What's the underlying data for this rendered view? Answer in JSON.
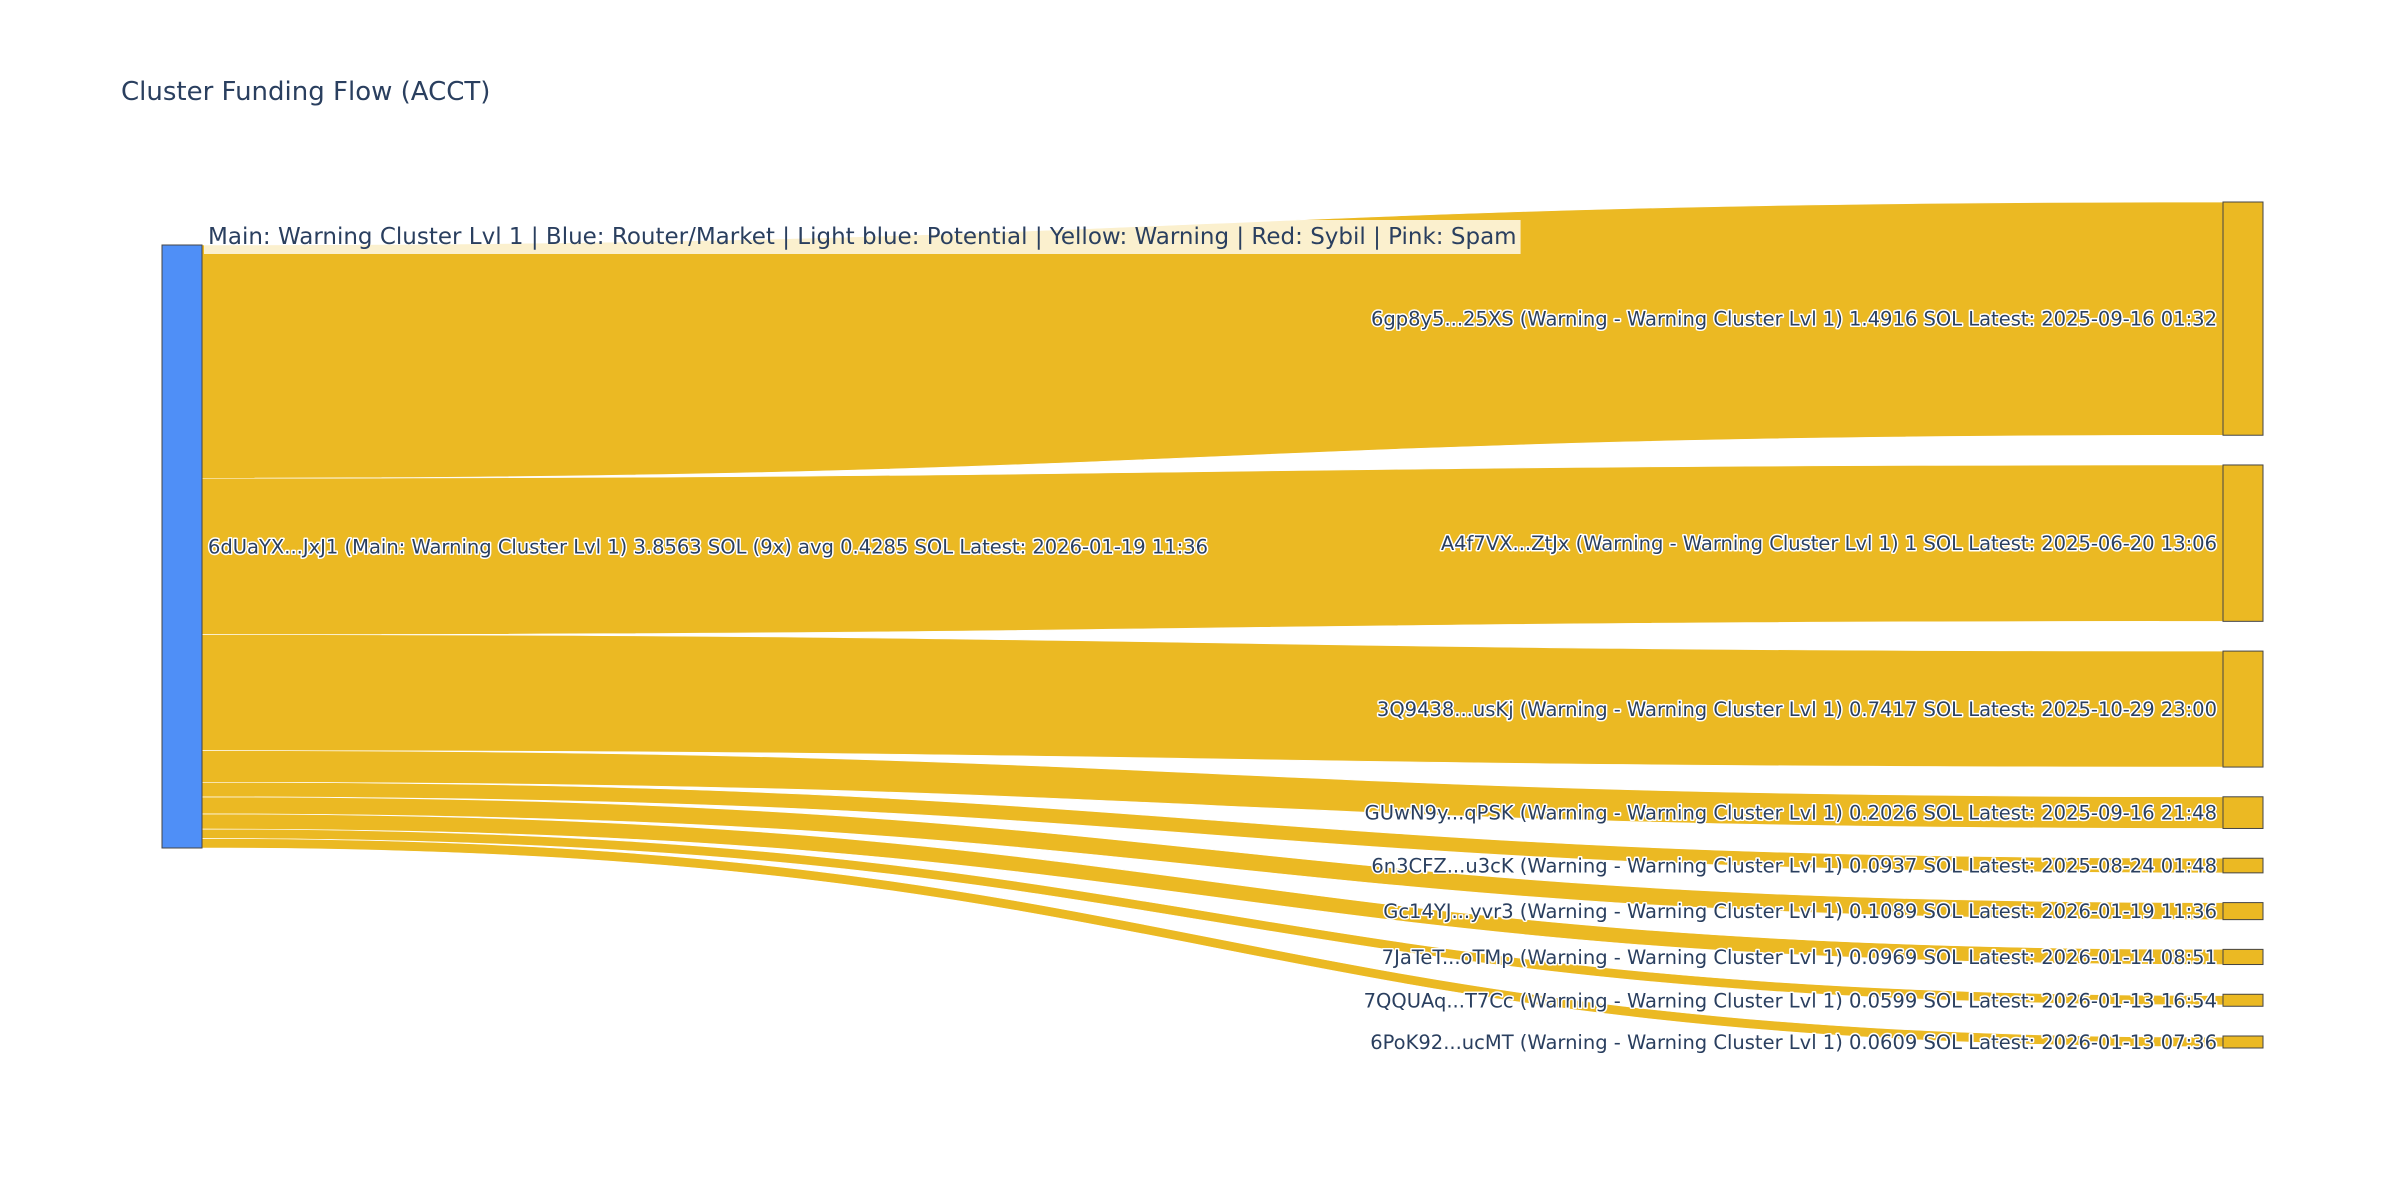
{
  "chart_data": {
    "type": "sankey",
    "title": "Cluster Funding Flow (ACCT)",
    "legend_note": "Main: Warning Cluster Lvl 1  |  Blue: Router/Market | Light blue: Potential | Yellow: Warning | Red: Sybil | Pink: Spam",
    "colors": {
      "source_node": "#4f8ff7",
      "warning": "#ebb923",
      "link": "#ebb923",
      "node_border": "#444444"
    },
    "source": {
      "label": "6dUaYX...JxJ1 (Main: Warning Cluster Lvl 1) 3.8563 SOL (9x) avg 0.4285 SOL Latest: 2026-01-19 11:36",
      "value": 3.8563
    },
    "targets": [
      {
        "label": "6gp8y5...25XS (Warning - Warning Cluster Lvl 1) 1.4916 SOL Latest: 2025-09-16 01:32",
        "value": 1.4916
      },
      {
        "label": "A4f7VX...ZtJx (Warning - Warning Cluster Lvl 1) 1 SOL Latest: 2025-06-20 13:06",
        "value": 1.0
      },
      {
        "label": "3Q9438...usKj (Warning - Warning Cluster Lvl 1) 0.7417 SOL Latest: 2025-10-29 23:00",
        "value": 0.7417
      },
      {
        "label": "GUwN9y...qPSK (Warning - Warning Cluster Lvl 1) 0.2026 SOL Latest: 2025-09-16 21:48",
        "value": 0.2026
      },
      {
        "label": "6n3CFZ...u3cK (Warning - Warning Cluster Lvl 1) 0.0937 SOL Latest: 2025-08-24 01:48",
        "value": 0.0937
      },
      {
        "label": "Gc14YJ...yvr3 (Warning - Warning Cluster Lvl 1) 0.1089 SOL Latest: 2026-01-19 11:36",
        "value": 0.1089
      },
      {
        "label": "7JaTeT...oTMp (Warning - Warning Cluster Lvl 1) 0.0969 SOL Latest: 2026-01-14 08:51",
        "value": 0.0969
      },
      {
        "label": "7QQUAq...T7Cc (Warning - Warning Cluster Lvl 1) 0.0599 SOL Latest: 2026-01-13 16:54",
        "value": 0.0599
      },
      {
        "label": "6PoK92...ucMT (Warning - Warning Cluster Lvl 1) 0.0609 SOL Latest: 2026-01-13 07:36",
        "value": 0.0609
      }
    ]
  }
}
